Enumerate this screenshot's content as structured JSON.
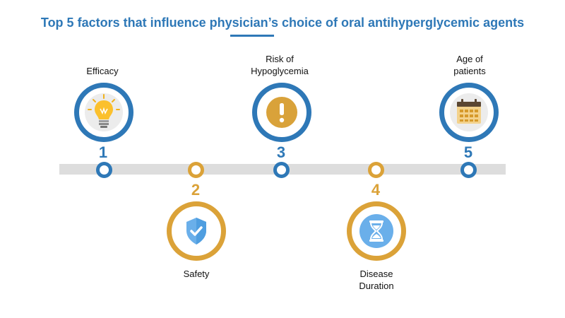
{
  "title": "Top 5 factors that influence physician’s choice of oral antihyperglycemic agents",
  "colors": {
    "blue": "#2e78b7",
    "gold": "#dba238",
    "track": "#dddddd"
  },
  "factors": [
    {
      "number": "1",
      "label_lines": [
        "Efficacy"
      ],
      "icon": "lightbulb-icon",
      "color": "blue"
    },
    {
      "number": "2",
      "label_lines": [
        "Safety"
      ],
      "icon": "shield-check-icon",
      "color": "gold"
    },
    {
      "number": "3",
      "label_lines": [
        "Risk of",
        "Hypoglycemia"
      ],
      "icon": "exclamation-icon",
      "color": "blue"
    },
    {
      "number": "4",
      "label_lines": [
        "Disease",
        "Duration"
      ],
      "icon": "hourglass-icon",
      "color": "gold"
    },
    {
      "number": "5",
      "label_lines": [
        "Age of",
        "patients"
      ],
      "icon": "calendar-icon",
      "color": "blue"
    }
  ]
}
